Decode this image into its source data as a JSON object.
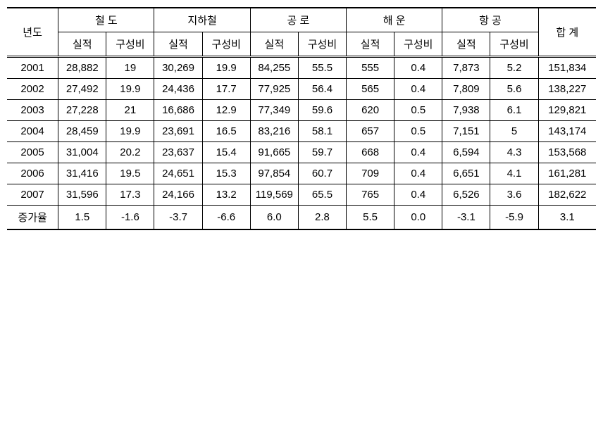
{
  "table": {
    "type": "table",
    "background_color": "#ffffff",
    "border_color": "#000000",
    "font_family": "Malgun Gothic",
    "font_size_pt": 11,
    "header": {
      "year": "년도",
      "groups": [
        {
          "label": "철  도",
          "sub": [
            "실적",
            "구성비"
          ]
        },
        {
          "label": "지하철",
          "sub": [
            "실적",
            "구성비"
          ]
        },
        {
          "label": "공  로",
          "sub": [
            "실적",
            "구성비"
          ]
        },
        {
          "label": "해  운",
          "sub": [
            "실적",
            "구성비"
          ]
        },
        {
          "label": "항  공",
          "sub": [
            "실적",
            "구성비"
          ]
        }
      ],
      "total": "합  계"
    },
    "rows": [
      {
        "year": "2001",
        "cells": [
          "28,882",
          "19",
          "30,269",
          "19.9",
          "84,255",
          "55.5",
          "555",
          "0.4",
          "7,873",
          "5.2"
        ],
        "total": "151,834"
      },
      {
        "year": "2002",
        "cells": [
          "27,492",
          "19.9",
          "24,436",
          "17.7",
          "77,925",
          "56.4",
          "565",
          "0.4",
          "7,809",
          "5.6"
        ],
        "total": "138,227"
      },
      {
        "year": "2003",
        "cells": [
          "27,228",
          "21",
          "16,686",
          "12.9",
          "77,349",
          "59.6",
          "620",
          "0.5",
          "7,938",
          "6.1"
        ],
        "total": "129,821"
      },
      {
        "year": "2004",
        "cells": [
          "28,459",
          "19.9",
          "23,691",
          "16.5",
          "83,216",
          "58.1",
          "657",
          "0.5",
          "7,151",
          "5"
        ],
        "total": "143,174"
      },
      {
        "year": "2005",
        "cells": [
          "31,004",
          "20.2",
          "23,637",
          "15.4",
          "91,665",
          "59.7",
          "668",
          "0.4",
          "6,594",
          "4.3"
        ],
        "total": "153,568"
      },
      {
        "year": "2006",
        "cells": [
          "31,416",
          "19.5",
          "24,651",
          "15.3",
          "97,854",
          "60.7",
          "709",
          "0.4",
          "6,651",
          "4.1"
        ],
        "total": "161,281"
      },
      {
        "year": "2007",
        "cells": [
          "31,596",
          "17.3",
          "24,166",
          "13.2",
          "119,569",
          "65.5",
          "765",
          "0.4",
          "6,526",
          "3.6"
        ],
        "total": "182,622"
      },
      {
        "year": "증가율",
        "cells": [
          "1.5",
          "-1.6",
          "-3.7",
          "-6.6",
          "6.0",
          "2.8",
          "5.5",
          "0.0",
          "-3.1",
          "-5.9"
        ],
        "total": "3.1"
      }
    ],
    "column_widths": {
      "year": 64,
      "data": 60,
      "total": 72
    }
  }
}
